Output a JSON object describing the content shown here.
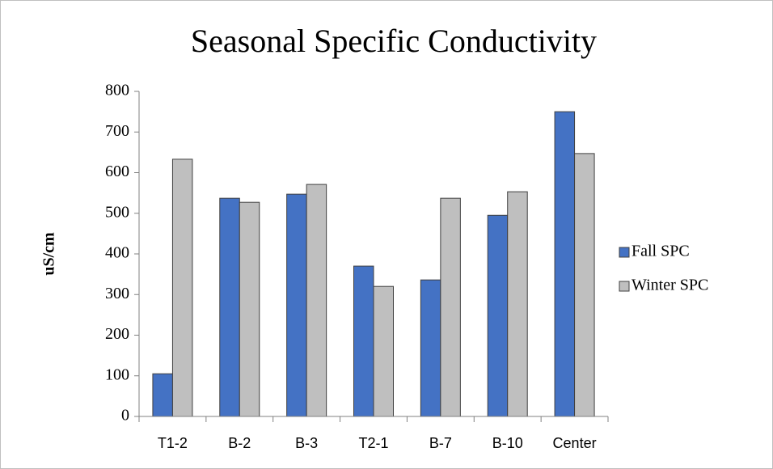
{
  "chart_data": {
    "type": "bar",
    "title": "Seasonal Specific Conductivity",
    "y_label": "uS/cm",
    "categories": [
      "T1-2",
      "B-2",
      "B-3",
      "T2-1",
      "B-7",
      "B-10",
      "Center"
    ],
    "series": [
      {
        "name": "Fall SPC",
        "color": "#4472c4",
        "values": [
          105,
          537,
          547,
          370,
          336,
          495,
          750
        ]
      },
      {
        "name": "Winter SPC",
        "color": "#bfbfbf",
        "values": [
          633,
          527,
          571,
          320,
          537,
          553,
          647
        ]
      }
    ],
    "ylim": [
      0,
      800
    ],
    "yticks": [
      0,
      100,
      200,
      300,
      400,
      500,
      600,
      700,
      800
    ],
    "grid": false,
    "legend": "right"
  }
}
